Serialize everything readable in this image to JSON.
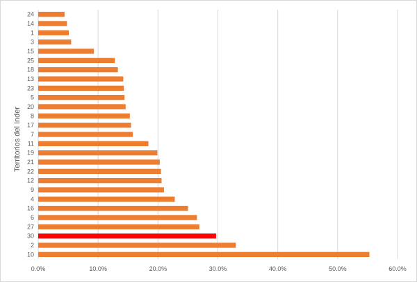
{
  "chart_data": {
    "type": "bar",
    "orientation": "horizontal",
    "title": "",
    "xlabel": "",
    "ylabel": "Territorios del Inder",
    "xlim": [
      0,
      0.6
    ],
    "x_ticks": [
      0,
      0.1,
      0.2,
      0.3,
      0.4,
      0.5,
      0.6
    ],
    "x_tick_labels": [
      "0.0%",
      "10.0%",
      "20.0%",
      "30.0%",
      "40.0%",
      "50.0%",
      "60.0%"
    ],
    "grid": "vertical gridlines",
    "legend": "none",
    "bar_color": "#ED7D31",
    "highlight_color": "#FF0000",
    "categories": [
      "10",
      "2",
      "30",
      "27",
      "6",
      "16",
      "4",
      "9",
      "12",
      "22",
      "21",
      "19",
      "11",
      "7",
      "17",
      "8",
      "20",
      "5",
      "23",
      "13",
      "18",
      "25",
      "15",
      "3",
      "1",
      "14",
      "24"
    ],
    "values": [
      0.553,
      0.33,
      0.297,
      0.269,
      0.265,
      0.25,
      0.228,
      0.21,
      0.206,
      0.205,
      0.203,
      0.199,
      0.184,
      0.158,
      0.155,
      0.153,
      0.146,
      0.144,
      0.143,
      0.142,
      0.133,
      0.128,
      0.093,
      0.055,
      0.051,
      0.048,
      0.044
    ],
    "highlighted": [
      "30"
    ]
  }
}
